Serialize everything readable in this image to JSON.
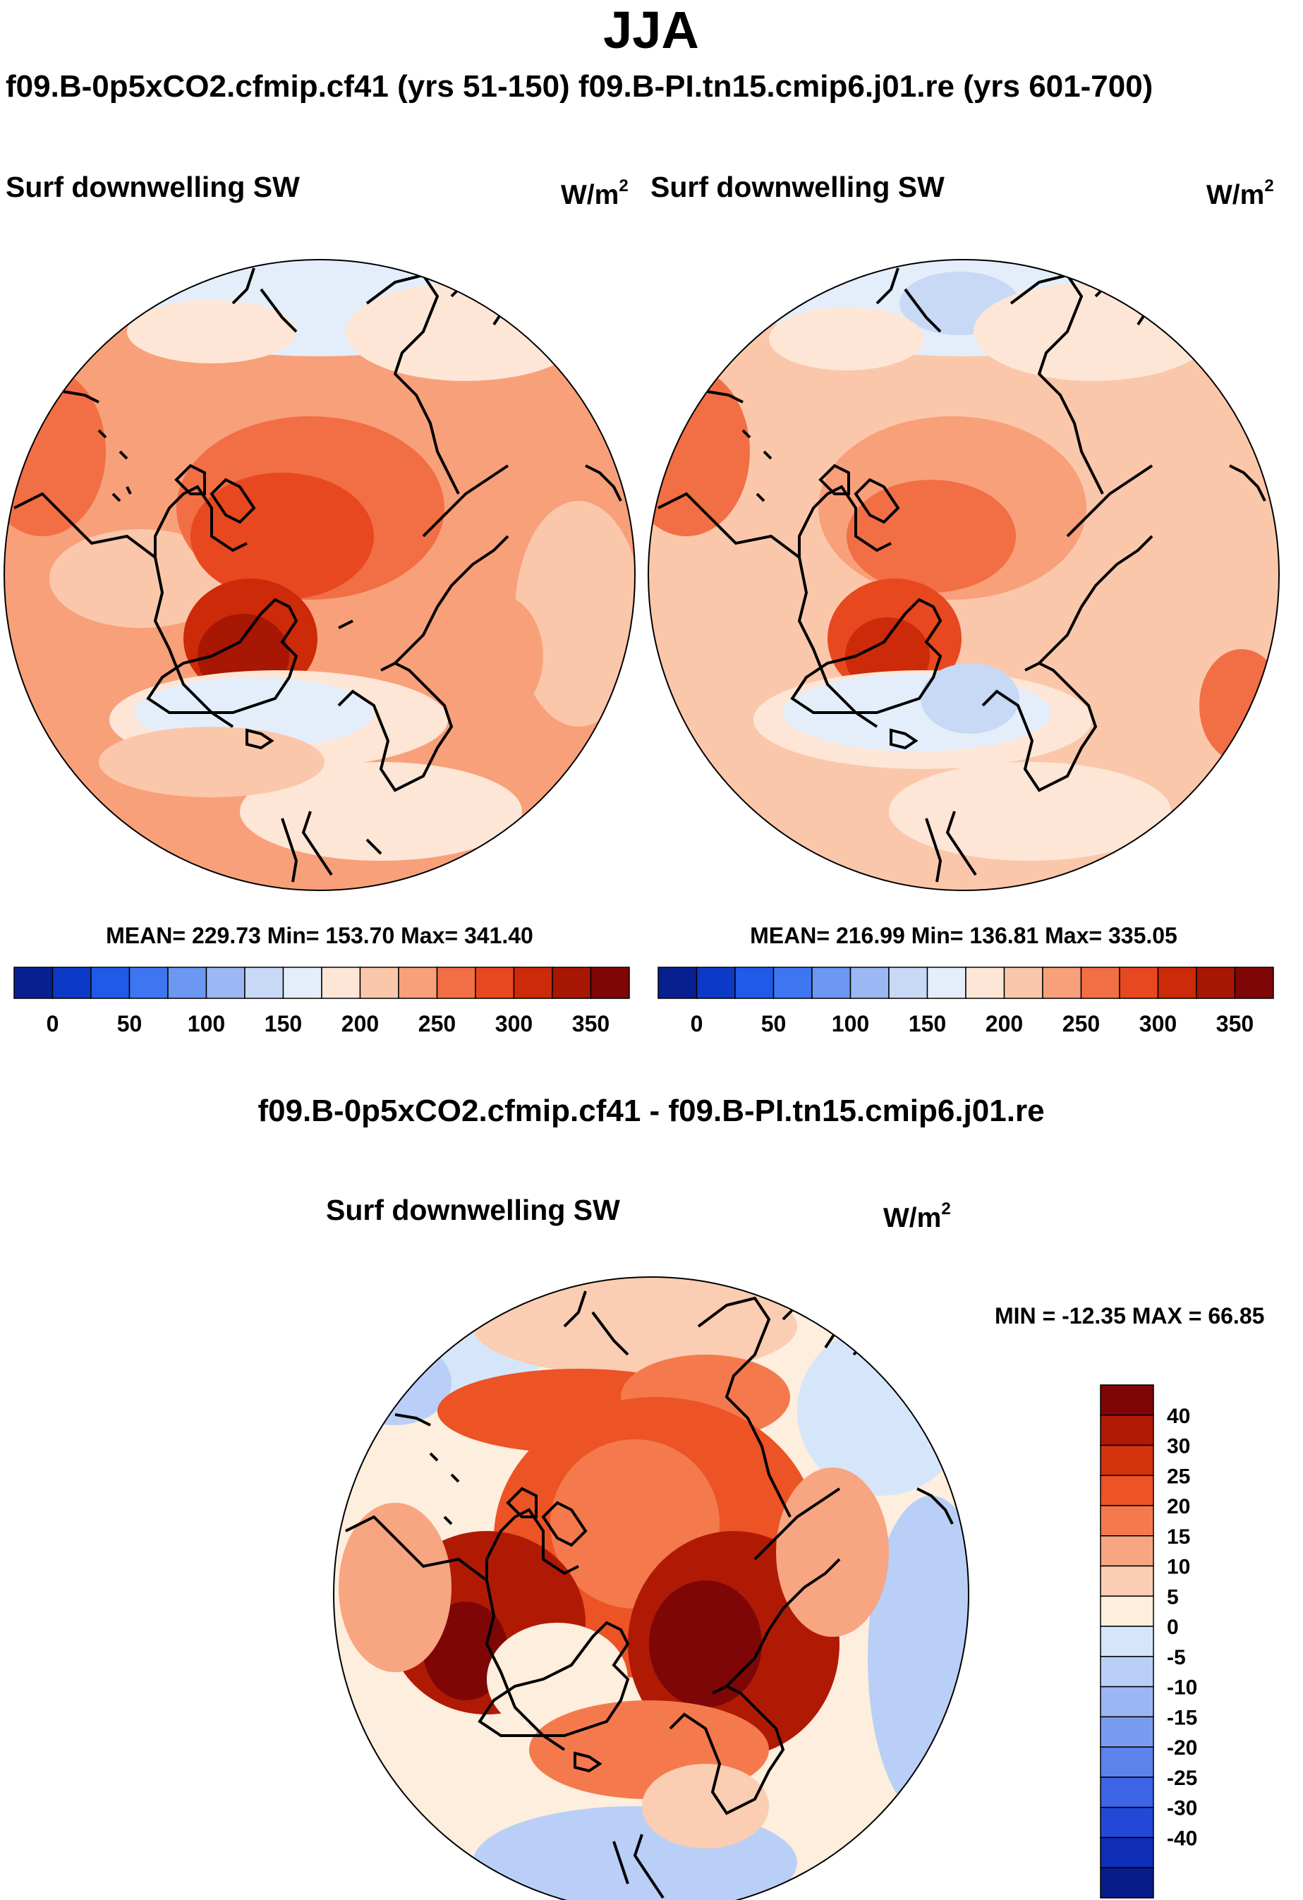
{
  "title": "JJA",
  "case_titles": "f09.B-0p5xCO2.cfmip.cf41 (yrs 51-150) f09.B-PI.tn15.cmip6.j01.re (yrs 601-700)",
  "panels": [
    {
      "variable": "Surf downwelling SW",
      "units_base": "W/m",
      "units_exp": "2",
      "stats": "MEAN= 229.73  Min= 153.70  Max= 341.40"
    },
    {
      "variable": "Surf downwelling SW",
      "units_base": "W/m",
      "units_exp": "2",
      "stats": "MEAN= 216.99  Min= 136.81  Max= 335.05"
    }
  ],
  "abs_colorbar": {
    "colors": [
      "#08208f",
      "#0c3ac7",
      "#1f5ae8",
      "#3d76f0",
      "#6d98f2",
      "#9bb8f4",
      "#c8d9f6",
      "#e4eefa",
      "#fde6d6",
      "#fbc7aa",
      "#f8a07a",
      "#f26e45",
      "#e8481f",
      "#cc2a08",
      "#a81604",
      "#7f0606"
    ],
    "tick_labels": [
      "0",
      "50",
      "100",
      "150",
      "200",
      "250",
      "300",
      "350"
    ]
  },
  "diff": {
    "title": "f09.B-0p5xCO2.cfmip.cf41 - f09.B-PI.tn15.cmip6.j01.re",
    "variable": "Surf downwelling SW",
    "units_base": "W/m",
    "units_exp": "2",
    "minmax": "MIN = -12.35 MAX =  66.85",
    "colorbar": {
      "colors": [
        "#7f0606",
        "#b01a05",
        "#d4340d",
        "#ec5325",
        "#f47a4d",
        "#f8a582",
        "#fbcdb2",
        "#fdeedd",
        "#d6e6fa",
        "#b9cff7",
        "#9ab6f4",
        "#7a9cf0",
        "#5c82ec",
        "#3c64e6",
        "#2348d8",
        "#0e2fb5",
        "#071c88"
      ],
      "tick_labels": [
        "40",
        "30",
        "25",
        "20",
        "15",
        "10",
        "5",
        "0",
        "-5",
        "-10",
        "-15",
        "-20",
        "-25",
        "-30",
        "-40"
      ]
    }
  },
  "chart_data": [
    {
      "type": "heatmap",
      "title": "JJA Surf downwelling SW — f09.B-0p5xCO2.cfmip.cf41 (yrs 51-150)",
      "units": "W/m2",
      "mean": 229.73,
      "min": 153.7,
      "max": 341.4,
      "color_levels": [
        0,
        50,
        100,
        150,
        200,
        250,
        300,
        350
      ]
    },
    {
      "type": "heatmap",
      "title": "JJA Surf downwelling SW — f09.B-PI.tn15.cmip6.j01.re (yrs 601-700)",
      "units": "W/m2",
      "mean": 216.99,
      "min": 136.81,
      "max": 335.05,
      "color_levels": [
        0,
        50,
        100,
        150,
        200,
        250,
        300,
        350
      ]
    },
    {
      "type": "heatmap",
      "title": "f09.B-0p5xCO2.cfmip.cf41 - f09.B-PI.tn15.cmip6.j01.re",
      "units": "W/m2",
      "min": -12.35,
      "max": 66.85,
      "color_levels": [
        40,
        30,
        25,
        20,
        15,
        10,
        5,
        0,
        -5,
        -10,
        -15,
        -20,
        -25,
        -30,
        -40
      ]
    }
  ]
}
